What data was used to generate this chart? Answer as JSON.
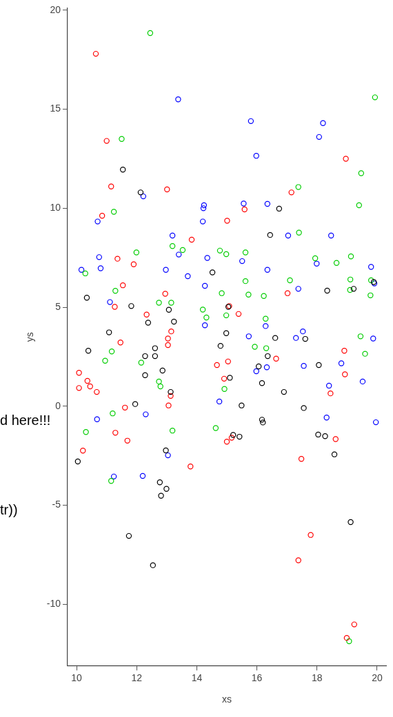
{
  "chart_data": {
    "type": "scatter",
    "xlabel": "xs",
    "ylabel": "ys",
    "xlim": [
      9.7,
      20.3
    ],
    "ylim": [
      -13.1,
      20.1
    ],
    "xticks": [
      10,
      12,
      14,
      16,
      18,
      20
    ],
    "yticks": [
      -10,
      -5,
      0,
      5,
      10,
      15,
      20
    ],
    "grid": false,
    "legend": false,
    "marker": "circle",
    "annotations": [
      "d here!!!",
      "tr))"
    ],
    "series": [
      {
        "color": "#000000",
        "x": [
          11.54,
          12.13,
          16.74,
          16.44,
          14.52,
          19.89,
          18.34,
          19.22,
          10.34,
          11.82,
          13.07,
          12.38,
          13.24,
          15.05,
          11.08,
          14.98,
          16.61,
          17.61,
          10.39,
          12.61,
          12.28,
          12.61,
          14.79,
          16.36,
          16.06,
          18.06,
          12.86,
          12.28,
          13.13,
          15.1,
          16.17,
          16.9,
          11.95,
          15.49,
          17.56,
          16.17,
          16.2,
          15.21,
          15.42,
          18.04,
          18.27,
          18.58,
          10.04,
          12.97,
          12.77,
          12.99,
          12.81,
          11.74,
          12.54,
          19.12
        ],
        "values": [
          11.95,
          10.8,
          9.98,
          8.65,
          6.76,
          6.27,
          5.84,
          5.93,
          5.48,
          5.06,
          4.87,
          4.22,
          4.27,
          5.02,
          3.73,
          3.69,
          3.45,
          3.4,
          2.8,
          2.93,
          2.53,
          2.53,
          3.05,
          2.53,
          2.01,
          2.08,
          1.8,
          1.57,
          0.72,
          1.44,
          1.17,
          0.72,
          0.11,
          0.04,
          -0.09,
          -0.68,
          -0.82,
          -1.45,
          -1.54,
          -1.43,
          -1.51,
          -2.43,
          -2.79,
          -2.23,
          -3.84,
          -4.17,
          -4.52,
          -6.55,
          -8.03,
          -5.85
        ]
      },
      {
        "color": "#ff0000",
        "x": [
          10.64,
          11.0,
          18.96,
          11.15,
          13.01,
          17.15,
          15.59,
          10.85,
          15.01,
          13.83,
          11.36,
          11.9,
          11.54,
          12.95,
          17.02,
          11.27,
          12.33,
          15.08,
          15.39,
          11.46,
          13.15,
          13.04,
          13.04,
          16.64,
          14.67,
          15.04,
          18.91,
          18.93,
          10.08,
          10.36,
          10.45,
          10.08,
          10.67,
          13.13,
          14.91,
          18.45,
          11.61,
          13.06,
          11.29,
          11.69,
          15.16,
          15.0,
          18.62,
          17.48,
          10.21,
          13.79,
          17.79,
          17.38,
          19.24,
          18.99
        ],
        "values": [
          17.8,
          13.4,
          12.5,
          11.1,
          10.95,
          10.8,
          9.94,
          9.62,
          9.37,
          8.41,
          7.45,
          7.17,
          6.11,
          5.68,
          5.71,
          5.02,
          4.63,
          5.06,
          4.66,
          3.22,
          3.78,
          3.42,
          3.09,
          2.4,
          2.08,
          2.26,
          2.8,
          1.61,
          1.69,
          1.28,
          1.0,
          0.92,
          0.72,
          0.52,
          1.39,
          0.65,
          -0.07,
          0.04,
          -1.34,
          -1.74,
          -1.59,
          -1.79,
          -1.66,
          -2.66,
          -2.24,
          -3.04,
          -6.5,
          -7.78,
          -11.02,
          -11.7
        ]
      },
      {
        "color": "#00cd00",
        "x": [
          12.45,
          19.93,
          11.5,
          19.47,
          17.38,
          19.4,
          11.24,
          17.4,
          13.19,
          13.53,
          14.77,
          14.98,
          15.62,
          11.99,
          10.29,
          17.94,
          18.65,
          19.13,
          15.62,
          17.1,
          19.11,
          19.8,
          19.1,
          11.29,
          14.83,
          15.72,
          16.23,
          19.78,
          12.74,
          13.15,
          14.2,
          14.32,
          14.98,
          16.29,
          19.45,
          11.17,
          10.95,
          12.15,
          15.93,
          16.31,
          19.6,
          12.74,
          12.79,
          14.92,
          11.2,
          10.31,
          13.19,
          14.63,
          11.15,
          19.07
        ],
        "values": [
          18.85,
          15.6,
          13.5,
          11.77,
          11.07,
          10.15,
          9.82,
          8.77,
          8.09,
          7.89,
          7.86,
          7.68,
          7.77,
          7.77,
          6.71,
          7.47,
          7.24,
          7.57,
          6.32,
          6.36,
          6.4,
          6.36,
          5.87,
          5.83,
          5.71,
          5.64,
          5.57,
          5.6,
          5.23,
          5.23,
          4.88,
          4.48,
          4.59,
          4.42,
          3.53,
          2.77,
          2.3,
          2.2,
          3.0,
          2.93,
          2.65,
          1.25,
          1.0,
          0.87,
          -0.36,
          -1.3,
          -1.23,
          -1.1,
          -3.77,
          -11.87
        ]
      },
      {
        "color": "#0000ff",
        "x": [
          13.38,
          15.8,
          18.2,
          18.07,
          15.98,
          12.22,
          14.24,
          14.22,
          15.56,
          16.35,
          10.7,
          14.2,
          13.19,
          17.04,
          18.47,
          13.4,
          14.35,
          15.51,
          10.75,
          10.16,
          10.8,
          12.97,
          13.7,
          16.35,
          17.99,
          19.8,
          19.91,
          14.27,
          17.38,
          11.11,
          14.27,
          16.29,
          15.73,
          17.3,
          17.53,
          19.87,
          16.33,
          15.98,
          17.56,
          18.81,
          19.52,
          18.4,
          14.75,
          10.68,
          12.3,
          18.32,
          19.96,
          13.04,
          11.24,
          12.2
        ],
        "values": [
          15.5,
          14.4,
          14.3,
          13.6,
          12.65,
          10.6,
          10.15,
          10.0,
          10.24,
          10.22,
          9.33,
          9.33,
          8.62,
          8.62,
          8.62,
          7.66,
          7.49,
          7.33,
          7.53,
          6.89,
          6.97,
          6.89,
          6.57,
          6.89,
          7.2,
          7.04,
          6.2,
          6.08,
          5.93,
          5.26,
          4.09,
          4.05,
          3.53,
          3.45,
          3.78,
          3.42,
          1.97,
          1.77,
          2.04,
          2.17,
          1.25,
          1.04,
          0.24,
          -0.66,
          -0.41,
          -0.57,
          -0.81,
          -2.48,
          -3.55,
          -3.52
        ]
      }
    ]
  }
}
